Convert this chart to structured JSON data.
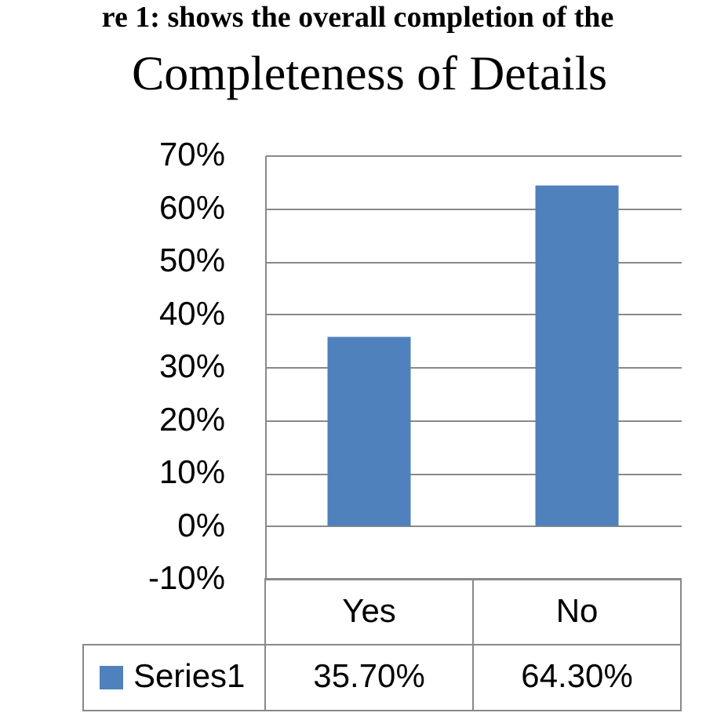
{
  "chart_data": {
    "type": "bar",
    "title": "Completeness of Details",
    "annotations": [
      "re 1: shows the overall completion of the"
    ],
    "categories": [
      "Yes",
      "No"
    ],
    "series": [
      {
        "name": "Series1",
        "color": "#4f81bd",
        "values": [
          35.7,
          64.3
        ],
        "value_labels": [
          "35.70%",
          "64.30%"
        ]
      }
    ],
    "ylim": [
      -10,
      70
    ],
    "yticks": [
      {
        "value": -10,
        "label": "-10%"
      },
      {
        "value": 0,
        "label": "0%"
      },
      {
        "value": 10,
        "label": "10%"
      },
      {
        "value": 20,
        "label": "20%"
      },
      {
        "value": 30,
        "label": "30%"
      },
      {
        "value": 40,
        "label": "40%"
      },
      {
        "value": 50,
        "label": "50%"
      },
      {
        "value": 60,
        "label": "60%"
      },
      {
        "value": 70,
        "label": "70%"
      }
    ],
    "grid": "y",
    "legend": "bottom"
  }
}
